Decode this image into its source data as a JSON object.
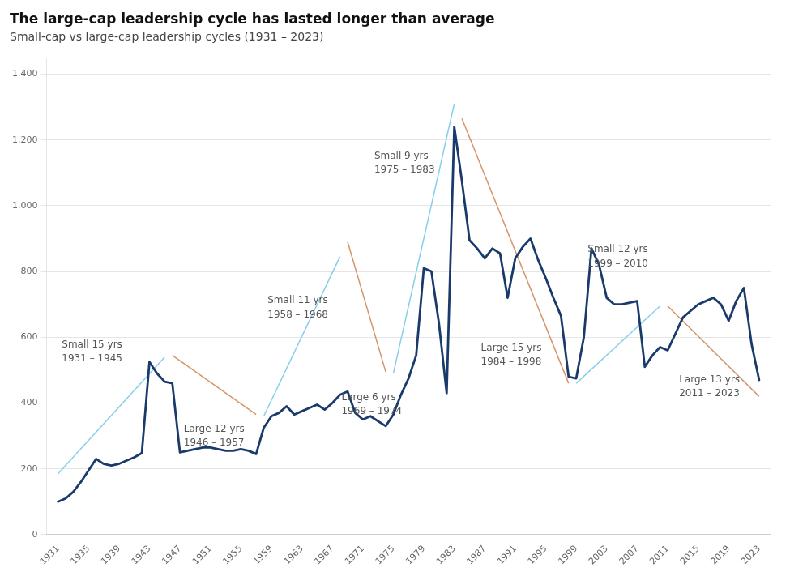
{
  "chart_data": {
    "type": "line",
    "title": "The large-cap leadership cycle has lasted longer than average",
    "subtitle": "Small-cap vs large-cap leadership cycles (1931 – 2023)",
    "x": [
      1931,
      1932,
      1933,
      1934,
      1935,
      1936,
      1937,
      1938,
      1939,
      1940,
      1941,
      1942,
      1943,
      1944,
      1945,
      1946,
      1947,
      1948,
      1949,
      1950,
      1951,
      1952,
      1953,
      1954,
      1955,
      1956,
      1957,
      1958,
      1959,
      1960,
      1961,
      1962,
      1963,
      1964,
      1965,
      1966,
      1967,
      1968,
      1969,
      1970,
      1971,
      1972,
      1973,
      1974,
      1975,
      1976,
      1977,
      1978,
      1979,
      1980,
      1981,
      1982,
      1983,
      1984,
      1985,
      1986,
      1987,
      1988,
      1989,
      1990,
      1991,
      1992,
      1993,
      1994,
      1995,
      1996,
      1997,
      1998,
      1999,
      2000,
      2001,
      2002,
      2003,
      2004,
      2005,
      2006,
      2007,
      2008,
      2009,
      2010,
      2011,
      2012,
      2013,
      2014,
      2015,
      2016,
      2017,
      2018,
      2019,
      2020,
      2021,
      2022,
      2023
    ],
    "values": [
      100,
      110,
      130,
      160,
      195,
      230,
      215,
      210,
      215,
      225,
      235,
      248,
      525,
      490,
      465,
      460,
      250,
      255,
      260,
      265,
      265,
      260,
      255,
      255,
      260,
      255,
      245,
      325,
      360,
      370,
      390,
      365,
      375,
      385,
      395,
      380,
      400,
      425,
      435,
      370,
      350,
      360,
      345,
      330,
      365,
      425,
      475,
      545,
      810,
      800,
      640,
      430,
      1240,
      1075,
      895,
      870,
      840,
      870,
      855,
      720,
      840,
      875,
      900,
      835,
      780,
      720,
      665,
      480,
      475,
      600,
      870,
      820,
      720,
      700,
      700,
      705,
      710,
      510,
      545,
      570,
      560,
      610,
      660,
      680,
      700,
      710,
      720,
      700,
      650,
      710,
      750,
      580,
      470
    ],
    "color": "#1a3a6b",
    "lines": [
      {
        "x": [
          1931,
          1945
        ],
        "values": [
          185,
          540
        ],
        "color": "#87CEEB"
      },
      {
        "x": [
          1946,
          1957
        ],
        "values": [
          545,
          365
        ],
        "color": "#d4956a"
      },
      {
        "x": [
          1958,
          1968
        ],
        "values": [
          360,
          845
        ],
        "color": "#87CEEB"
      },
      {
        "x": [
          1969,
          1974
        ],
        "values": [
          890,
          495
        ],
        "color": "#d4956a"
      },
      {
        "x": [
          1975,
          1983
        ],
        "values": [
          490,
          1310
        ],
        "color": "#87CEEB"
      },
      {
        "x": [
          1984,
          1998
        ],
        "values": [
          1265,
          460
        ],
        "color": "#d4956a"
      },
      {
        "x": [
          1999,
          2010
        ],
        "values": [
          460,
          695
        ],
        "color": "#87CEEB"
      },
      {
        "x": [
          2011,
          2023
        ],
        "values": [
          695,
          420
        ],
        "color": "#d4956a"
      }
    ],
    "annotations": [
      {
        "text": "Small 15 yrs\n1931 – 1945",
        "x": 1931.5,
        "y": 555
      },
      {
        "text": "Large 12 yrs\n1946 – 1957",
        "x": 1947.5,
        "y": 300
      },
      {
        "text": "Small 11 yrs\n1958 – 1968",
        "x": 1958.5,
        "y": 690
      },
      {
        "text": "Large 6 yrs\n1969 – 1974",
        "x": 1968.2,
        "y": 395
      },
      {
        "text": "Small 9 yrs\n1975 – 1983",
        "x": 1972.5,
        "y": 1130
      },
      {
        "text": "Large 15 yrs\n1984 – 1998",
        "x": 1986.5,
        "y": 545
      },
      {
        "text": "Small 12 yrs\n1999 – 2010",
        "x": 2000.5,
        "y": 845
      },
      {
        "text": "Large 13 yrs\n2011 – 2023",
        "x": 2012.5,
        "y": 450
      }
    ],
    "xlim": [
      1929.5,
      2024.5
    ],
    "xticks": [
      1931,
      1935,
      1939,
      1943,
      1947,
      1951,
      1955,
      1959,
      1963,
      1967,
      1971,
      1975,
      1979,
      1983,
      1987,
      1991,
      1995,
      1999,
      2003,
      2007,
      2011,
      2015,
      2019,
      2023
    ],
    "ylim": [
      0,
      1450
    ],
    "yticks": [
      0,
      200,
      400,
      600,
      {
        "value": 800,
        "label": "800"
      },
      {
        "value": 1000,
        "label": "1,000"
      },
      {
        "value": 1200,
        "label": "1,200"
      },
      {
        "value": 1400,
        "label": "1,400"
      }
    ],
    "grid": "y"
  }
}
